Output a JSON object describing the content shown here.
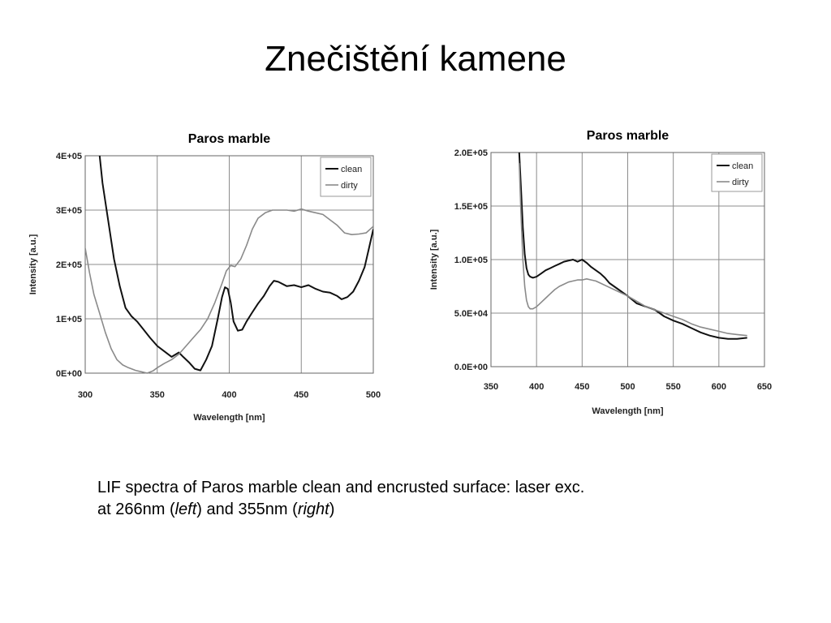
{
  "slide": {
    "title": "Znečištění kamene",
    "caption": {
      "line1": "LIF spectra of Paros marble clean and encrusted surface: laser exc.",
      "line2_prefix": "at 266nm (",
      "left_word": "left",
      "line2_mid": ") and 355nm (",
      "right_word": "right",
      "line2_suffix": ")"
    }
  },
  "chart_data": [
    {
      "type": "line",
      "title": "Paros marble",
      "xlabel": "Wavelength [nm]",
      "ylabel": "Intensity [a.u.]",
      "xlim": [
        300,
        500
      ],
      "ylim": [
        0,
        400000
      ],
      "x_ticks": [
        300,
        350,
        400,
        450,
        500
      ],
      "x_tick_labels": [
        "300",
        "350",
        "400",
        "450",
        "500"
      ],
      "y_ticks": [
        0,
        100000,
        200000,
        300000,
        400000
      ],
      "y_tick_labels": [
        "0E+00",
        "1E+05",
        "2E+05",
        "3E+05",
        "4E+05"
      ],
      "grid": true,
      "legend_position": "top-right",
      "series": [
        {
          "name": "clean",
          "color": "#111111",
          "x": [
            310,
            312,
            316,
            320,
            324,
            328,
            332,
            336,
            340,
            345,
            350,
            355,
            360,
            365,
            368,
            372,
            376,
            380,
            384,
            388,
            392,
            395,
            397,
            399,
            401,
            403,
            406,
            409,
            412,
            416,
            420,
            424,
            428,
            431,
            434,
            440,
            445,
            450,
            455,
            460,
            465,
            470,
            475,
            478,
            482,
            486,
            490,
            494,
            497,
            500
          ],
          "y": [
            400000,
            350000,
            280000,
            210000,
            160000,
            120000,
            105000,
            95000,
            82000,
            65000,
            50000,
            40000,
            30000,
            38000,
            30000,
            20000,
            8000,
            5000,
            25000,
            50000,
            100000,
            140000,
            158000,
            155000,
            130000,
            95000,
            78000,
            80000,
            95000,
            112000,
            128000,
            142000,
            160000,
            170000,
            168000,
            160000,
            162000,
            158000,
            162000,
            155000,
            150000,
            148000,
            142000,
            136000,
            140000,
            150000,
            170000,
            195000,
            230000,
            265000
          ]
        },
        {
          "name": "dirty",
          "color": "#8a8a8a",
          "x": [
            300,
            303,
            306,
            310,
            314,
            318,
            322,
            326,
            330,
            335,
            340,
            343,
            347,
            350,
            355,
            360,
            365,
            370,
            375,
            380,
            385,
            390,
            395,
            398,
            401,
            404,
            408,
            412,
            416,
            420,
            425,
            430,
            435,
            440,
            445,
            450,
            455,
            460,
            465,
            470,
            475,
            480,
            485,
            490,
            495,
            500
          ],
          "y": [
            230000,
            185000,
            145000,
            110000,
            75000,
            45000,
            25000,
            15000,
            10000,
            5000,
            2000,
            0,
            4000,
            10000,
            18000,
            25000,
            35000,
            50000,
            65000,
            80000,
            100000,
            130000,
            165000,
            188000,
            198000,
            196000,
            210000,
            235000,
            265000,
            285000,
            295000,
            300000,
            300000,
            300000,
            298000,
            302000,
            298000,
            295000,
            292000,
            282000,
            272000,
            258000,
            255000,
            256000,
            258000,
            270000
          ]
        }
      ]
    },
    {
      "type": "line",
      "title": "Paros marble",
      "xlabel": "Wavelength [nm]",
      "ylabel": "Intensity [a.u.]",
      "xlim": [
        350,
        650
      ],
      "ylim": [
        0,
        200000
      ],
      "x_ticks": [
        350,
        400,
        450,
        500,
        550,
        600,
        650
      ],
      "x_tick_labels": [
        "350",
        "400",
        "450",
        "500",
        "550",
        "600",
        "650"
      ],
      "y_ticks": [
        0,
        50000,
        100000,
        150000,
        200000
      ],
      "y_tick_labels": [
        "0.0E+00",
        "5.0E+04",
        "1.0E+05",
        "1.5E+05",
        "2.0E+05"
      ],
      "grid": true,
      "legend_position": "top-right",
      "series": [
        {
          "name": "clean",
          "color": "#111111",
          "x": [
            381,
            383,
            385,
            387,
            389,
            391,
            393,
            396,
            400,
            405,
            410,
            415,
            420,
            425,
            430,
            435,
            440,
            445,
            450,
            455,
            460,
            465,
            470,
            475,
            480,
            490,
            500,
            510,
            520,
            530,
            540,
            550,
            560,
            570,
            580,
            590,
            600,
            610,
            620,
            631
          ],
          "y": [
            200000,
            165000,
            130000,
            105000,
            92000,
            86000,
            84000,
            83000,
            84000,
            87000,
            90000,
            92000,
            94000,
            96000,
            98000,
            99000,
            100000,
            98000,
            100000,
            97000,
            93000,
            90000,
            87000,
            83000,
            78000,
            72000,
            66000,
            59000,
            56000,
            53000,
            47000,
            43000,
            40000,
            36000,
            32000,
            29000,
            27000,
            26000,
            26000,
            27000
          ]
        },
        {
          "name": "dirty",
          "color": "#8a8a8a",
          "x": [
            381,
            383,
            385,
            387,
            389,
            391,
            393,
            396,
            400,
            405,
            410,
            415,
            420,
            425,
            430,
            435,
            440,
            445,
            450,
            455,
            460,
            465,
            470,
            480,
            490,
            500,
            510,
            520,
            530,
            540,
            550,
            560,
            570,
            580,
            590,
            600,
            610,
            620,
            631
          ],
          "y": [
            190000,
            140000,
            100000,
            75000,
            62000,
            56000,
            54000,
            54000,
            56000,
            60000,
            64000,
            68000,
            72000,
            75000,
            77000,
            79000,
            80000,
            81000,
            81000,
            82000,
            81000,
            80000,
            78000,
            74000,
            70000,
            66000,
            61000,
            56000,
            53000,
            50000,
            47000,
            44000,
            40000,
            37000,
            35000,
            33000,
            31000,
            30000,
            29000
          ]
        }
      ]
    }
  ]
}
